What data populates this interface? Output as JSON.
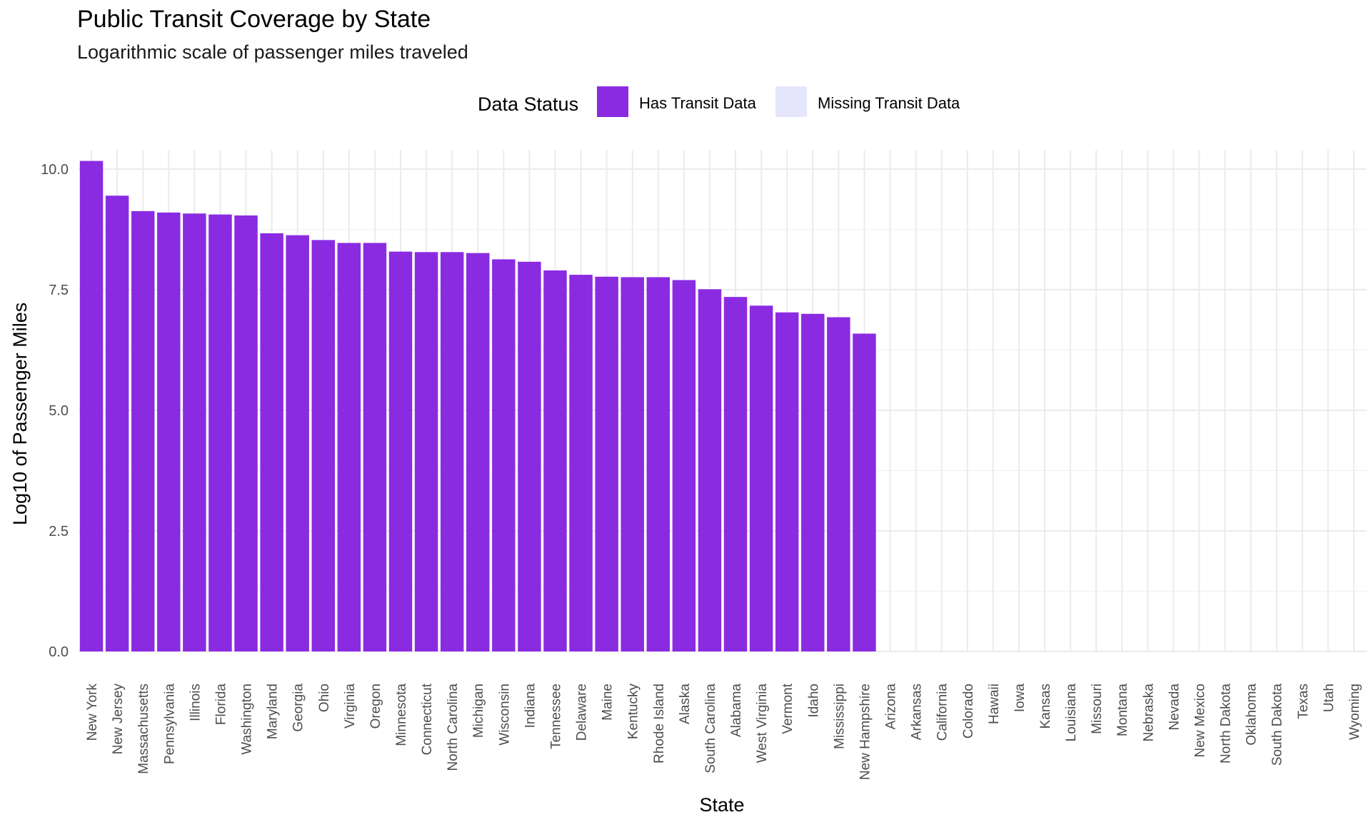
{
  "chart_data": {
    "type": "bar",
    "title": "Public Transit Coverage by State",
    "subtitle": "Logarithmic scale of passenger miles traveled",
    "xlabel": "State",
    "ylabel": "Log10 of Passenger Miles",
    "ylim": [
      0,
      10.4
    ],
    "yticks": [
      0,
      2.5,
      5,
      7.5,
      10
    ],
    "ytick_labels": [
      "0.0",
      "2.5",
      "5.0",
      "7.5",
      "10.0"
    ],
    "grid": true,
    "legend": {
      "title": "Data Status",
      "placement": "top",
      "entries": [
        {
          "label": "Has Transit Data",
          "color": "#8A2BE2"
        },
        {
          "label": "Missing Transit Data",
          "color": "#E6E6FA"
        }
      ]
    },
    "categories": [
      "New York",
      "New Jersey",
      "Massachusetts",
      "Pennsylvania",
      "Illinois",
      "Florida",
      "Washington",
      "Maryland",
      "Georgia",
      "Ohio",
      "Virginia",
      "Oregon",
      "Minnesota",
      "Connecticut",
      "North Carolina",
      "Michigan",
      "Wisconsin",
      "Indiana",
      "Tennessee",
      "Delaware",
      "Maine",
      "Kentucky",
      "Rhode Island",
      "Alaska",
      "South Carolina",
      "Alabama",
      "West Virginia",
      "Vermont",
      "Idaho",
      "Mississippi",
      "New Hampshire",
      "Arizona",
      "Arkansas",
      "California",
      "Colorado",
      "Hawaii",
      "Iowa",
      "Kansas",
      "Louisiana",
      "Missouri",
      "Montana",
      "Nebraska",
      "Nevada",
      "New Mexico",
      "North Dakota",
      "Oklahoma",
      "South Dakota",
      "Texas",
      "Utah",
      "Wyoming"
    ],
    "values": [
      10.17,
      9.45,
      9.13,
      9.1,
      9.08,
      9.06,
      9.04,
      8.67,
      8.63,
      8.53,
      8.47,
      8.47,
      8.29,
      8.28,
      8.28,
      8.26,
      8.13,
      8.08,
      7.9,
      7.81,
      7.77,
      7.76,
      7.76,
      7.7,
      7.51,
      7.35,
      7.17,
      7.03,
      7.0,
      6.93,
      6.59,
      0,
      0,
      0,
      0,
      0,
      0,
      0,
      0,
      0,
      0,
      0,
      0,
      0,
      0,
      0,
      0,
      0,
      0,
      0
    ],
    "status": [
      "Has Transit Data",
      "Has Transit Data",
      "Has Transit Data",
      "Has Transit Data",
      "Has Transit Data",
      "Has Transit Data",
      "Has Transit Data",
      "Has Transit Data",
      "Has Transit Data",
      "Has Transit Data",
      "Has Transit Data",
      "Has Transit Data",
      "Has Transit Data",
      "Has Transit Data",
      "Has Transit Data",
      "Has Transit Data",
      "Has Transit Data",
      "Has Transit Data",
      "Has Transit Data",
      "Has Transit Data",
      "Has Transit Data",
      "Has Transit Data",
      "Has Transit Data",
      "Has Transit Data",
      "Has Transit Data",
      "Has Transit Data",
      "Has Transit Data",
      "Has Transit Data",
      "Has Transit Data",
      "Has Transit Data",
      "Has Transit Data",
      "Missing Transit Data",
      "Missing Transit Data",
      "Missing Transit Data",
      "Missing Transit Data",
      "Missing Transit Data",
      "Missing Transit Data",
      "Missing Transit Data",
      "Missing Transit Data",
      "Missing Transit Data",
      "Missing Transit Data",
      "Missing Transit Data",
      "Missing Transit Data",
      "Missing Transit Data",
      "Missing Transit Data",
      "Missing Transit Data",
      "Missing Transit Data",
      "Missing Transit Data",
      "Missing Transit Data",
      "Missing Transit Data"
    ]
  }
}
